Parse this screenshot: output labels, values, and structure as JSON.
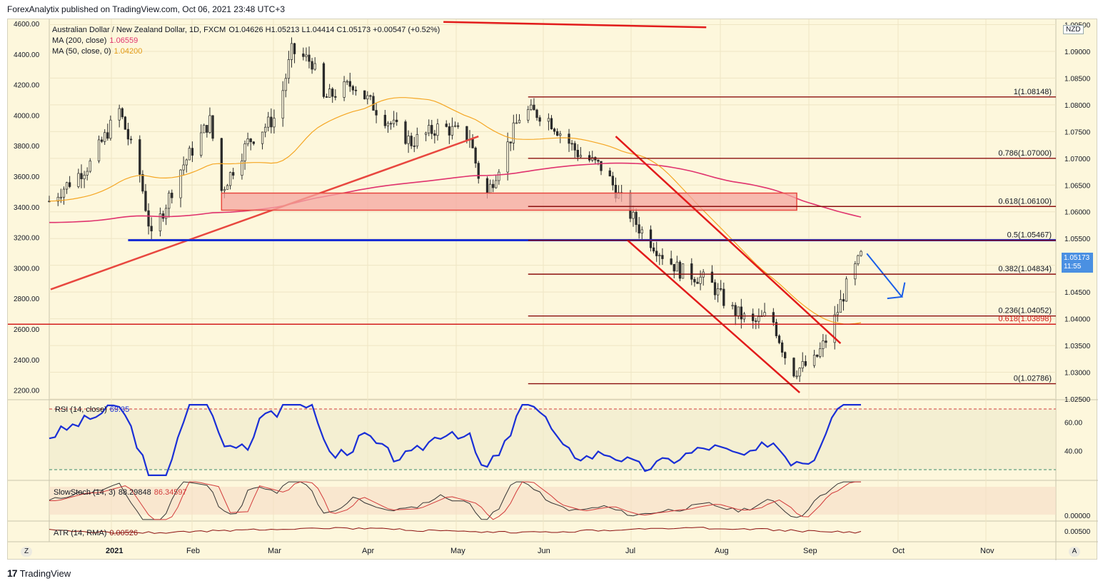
{
  "publisher_line": "ForexAnalytix published on TradingView.com, Oct 06, 2021 23:48 UTC+3",
  "footer": "TradingView",
  "legend": {
    "symbol": "Australian Dollar / New Zealand Dollar, 1D, FXCM",
    "ohlc": "O1.04626  H1.05213  L1.04414  C1.05173  +0.00547 (+0.52%)",
    "ma200_label": "MA (200, close)",
    "ma200_value": "1.06559",
    "ma50_label": "MA (50, close, 0)",
    "ma50_value": "1.04200"
  },
  "colors": {
    "background": "#fdf7dc",
    "ma200": "#e0336e",
    "ma50": "#f5a623",
    "trendline": "#e8473f",
    "support_line": "#1a2fd6",
    "fib_line": "#8b0f0f",
    "zone_fill": "#f4a6a0",
    "rsi_line": "#1a2fd6",
    "current_price_bg": "#4a90e2"
  },
  "price_axis": {
    "currency": "NZD",
    "ticks": [
      "1.09500",
      "1.09000",
      "1.08500",
      "1.08000",
      "1.07500",
      "1.07000",
      "1.06500",
      "1.06000",
      "1.05500",
      "1.05000",
      "1.04500",
      "1.04000",
      "1.03500",
      "1.03000",
      "1.02500"
    ],
    "current_price": "1.05173",
    "countdown": "11:55"
  },
  "left_axis": {
    "ticks": [
      "4600.00",
      "4400.00",
      "4200.00",
      "4000.00",
      "3800.00",
      "3600.00",
      "3400.00",
      "3200.00",
      "3000.00",
      "2800.00",
      "2600.00",
      "2400.00",
      "2200.00"
    ]
  },
  "time_axis": {
    "labels": [
      "2021",
      "Feb",
      "Mar",
      "Apr",
      "May",
      "Jun",
      "Jul",
      "Aug",
      "Sep",
      "Oct",
      "Nov"
    ]
  },
  "fib_levels": [
    {
      "label": "1(1.08148)",
      "price": 1.08148
    },
    {
      "label": "0.786(1.07000)",
      "price": 1.07
    },
    {
      "label": "0.618(1.06100)",
      "price": 1.061
    },
    {
      "label": "0.5(1.05467)",
      "price": 1.05467
    },
    {
      "label": "0.382(1.04834)",
      "price": 1.04834
    },
    {
      "label": "0.236(1.04052)",
      "price": 1.04052
    },
    {
      "label": "0.618(1.03898)",
      "price": 1.03898
    },
    {
      "label": "0(1.02786)",
      "price": 1.02786
    }
  ],
  "rsi": {
    "label": "RSI (14, close)",
    "value": "69.35",
    "ticks": [
      "60.00",
      "40.00"
    ]
  },
  "stoch": {
    "label": "SlowStoch (14, 3)",
    "k": "88.29848",
    "d": "86.34597",
    "ticks": [
      "0.00000"
    ]
  },
  "atr": {
    "label": "ATR (14, RMA)",
    "value": "0.00526",
    "ticks": [
      "0.00500"
    ]
  },
  "axis_buttons": {
    "left": "Z",
    "right": "A"
  },
  "chart_data": {
    "type": "candlestick",
    "title": "",
    "symbol": "AUDNZD",
    "timeframe": "1D",
    "x_range": [
      "2021-01-01",
      "2021-11-20"
    ],
    "ylim": [
      1.025,
      1.096
    ],
    "last_candle": {
      "date": "2021-10-06",
      "open": 1.04626,
      "high": 1.05213,
      "low": 1.04414,
      "close": 1.05173
    },
    "series": [
      {
        "name": "MA (200, close)",
        "last": 1.06559
      },
      {
        "name": "MA (50, close, 0)",
        "last": 1.042
      }
    ]
  }
}
